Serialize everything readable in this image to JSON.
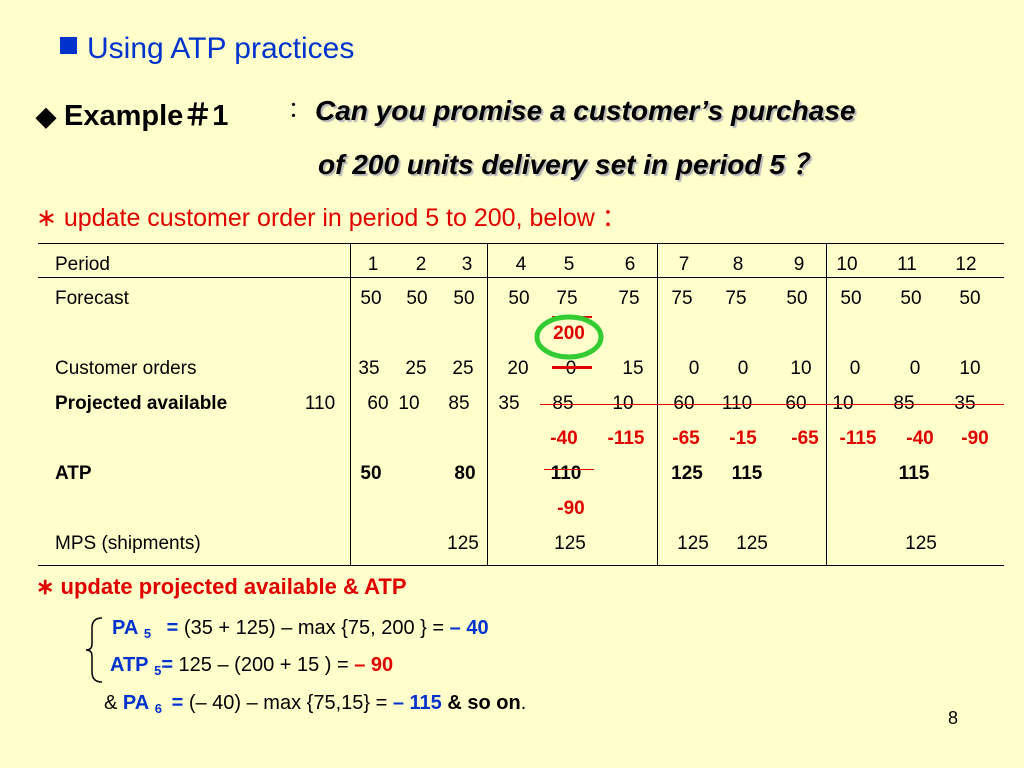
{
  "title": "Using ATP practices",
  "example": {
    "label": "Example＃1",
    "colon": "：",
    "question_line1": "Can you promise a customer’s purchase",
    "question_line2": "of 200 units delivery set in period 5 ？"
  },
  "update1": "∗ update customer order in period 5 to 200, below ：",
  "table": {
    "periods": [
      "1",
      "2",
      "3",
      "4",
      "5",
      "6",
      "7",
      "8",
      "9",
      "10",
      "11",
      "12"
    ],
    "labels": {
      "period": "Period",
      "forecast": "Forecast",
      "customer_orders": "Customer orders",
      "projected_available": "Projected available",
      "atp": "ATP",
      "mps": "MPS (shipments)"
    },
    "initial_projected": "110",
    "forecast": [
      "50",
      "50",
      "50",
      "50",
      "75",
      "75",
      "75",
      "75",
      "50",
      "50",
      "50",
      "50"
    ],
    "customer_orders": [
      "35",
      "25",
      "25",
      "20",
      "0",
      "15",
      "0",
      "0",
      "10",
      "0",
      "0",
      "10"
    ],
    "customer_order_update": "200",
    "projected_available": [
      "60",
      "10",
      "85",
      "35",
      "85",
      "10",
      "60",
      "110",
      "60",
      "10",
      "85",
      "35"
    ],
    "projected_updated": [
      "-40",
      "-115",
      "-65",
      "-15",
      "-65",
      "-115",
      "-40",
      "-90"
    ],
    "atp": [
      "50",
      "80",
      "110",
      "125",
      "115",
      "115"
    ],
    "atp_update": "-90",
    "mps": [
      "125",
      "125",
      "125",
      "125",
      "125"
    ]
  },
  "update2": "∗ update projected available & ATP",
  "eq1": {
    "pa": "PA",
    "sub": "5",
    "eq": "=",
    "body": " (35 + 125) – max {75, 200 } = ",
    "result": "– 40"
  },
  "eq2": {
    "atp": "ATP",
    "sub": "5",
    "eq": "=",
    "body": " 125 – (200 + 15 ) = ",
    "result": "– 90"
  },
  "eq3": {
    "amp": "& ",
    "pa": "PA",
    "sub": "6",
    "eq": "=",
    "body": " (– 40) – max {75,15} = ",
    "result": "– 115",
    "tail": "  &  so on",
    "period": "."
  },
  "page_number": "8",
  "colors": {
    "background": "#ffffcc",
    "title": "#0033cc",
    "red": "#e00000",
    "circle": "#33cc33"
  }
}
